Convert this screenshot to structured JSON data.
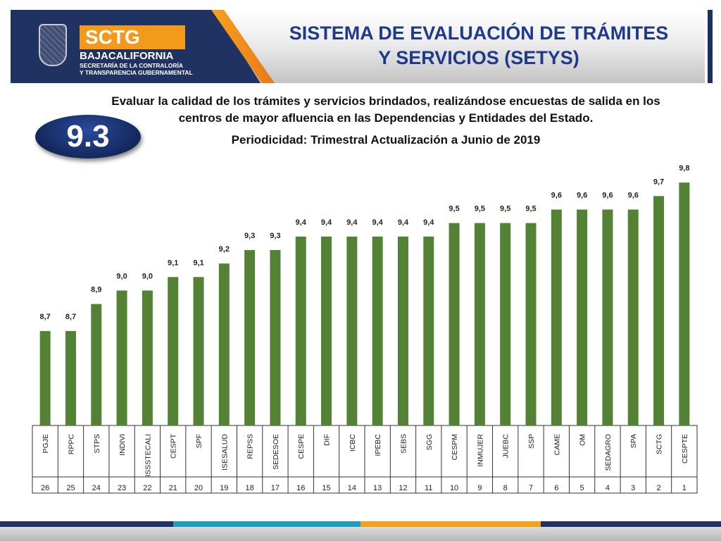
{
  "header": {
    "brand_badge": "SCTG",
    "brand_name": "BAJACALIFORNIA",
    "brand_sub_1": "SECRETARÍA DE LA CONTRALORÍA",
    "brand_sub_2": "Y TRANSPARENCIA GUBERNAMENTAL",
    "title_line1": "SISTEMA DE EVALUACIÓN DE TRÁMITES",
    "title_line2": "Y SERVICIOS (SETYS)"
  },
  "badge": {
    "label": "9.3"
  },
  "description": {
    "line1": "Evaluar la calidad de los trámites y servicios brindados, realizándose encuestas de salida en los",
    "line2": "centros de mayor afluencia en las Dependencias y Entidades del Estado.",
    "periodicity": "Periodicidad: Trimestral Actualización a Junio de 2019"
  },
  "colors": {
    "bar": "#548235",
    "title": "#1f3a8a",
    "navy": "#1f3261",
    "orange": "#f39a1c"
  },
  "chart_data": {
    "type": "bar",
    "categories": [
      "PGJE",
      "RPPC",
      "STPS",
      "INDIVI",
      "ISSSTECALI",
      "CESPT",
      "SPF",
      "ISESALUD",
      "REPSS",
      "SEDESOE",
      "CESPE",
      "DIF",
      "ICBC",
      "IPEBC",
      "SEBS",
      "SGG",
      "CESPM",
      "INMUJER",
      "JUEBC",
      "SSP",
      "CAME",
      "OM",
      "SEDAGRO",
      "SPA",
      "SCTG",
      "CESPTE"
    ],
    "values": [
      8.7,
      8.7,
      8.9,
      9.0,
      9.0,
      9.1,
      9.1,
      9.2,
      9.3,
      9.3,
      9.4,
      9.4,
      9.4,
      9.4,
      9.4,
      9.4,
      9.5,
      9.5,
      9.5,
      9.5,
      9.6,
      9.6,
      9.6,
      9.6,
      9.7,
      9.8
    ],
    "value_labels": [
      "8,7",
      "8,7",
      "8,9",
      "9,0",
      "9,0",
      "9,1",
      "9,1",
      "9,2",
      "9,3",
      "9,3",
      "9,4",
      "9,4",
      "9,4",
      "9,4",
      "9,4",
      "9,4",
      "9,5",
      "9,5",
      "9,5",
      "9,5",
      "9,6",
      "9,6",
      "9,6",
      "9,6",
      "9,7",
      "9,8"
    ],
    "ranks": [
      "26",
      "25",
      "24",
      "23",
      "22",
      "21",
      "20",
      "19",
      "18",
      "17",
      "16",
      "15",
      "14",
      "13",
      "12",
      "11",
      "10",
      "9",
      "8",
      "7",
      "6",
      "5",
      "4",
      "3",
      "2",
      "1"
    ],
    "ylim": [
      8.0,
      9.9
    ],
    "grid": false,
    "legend": "none"
  }
}
